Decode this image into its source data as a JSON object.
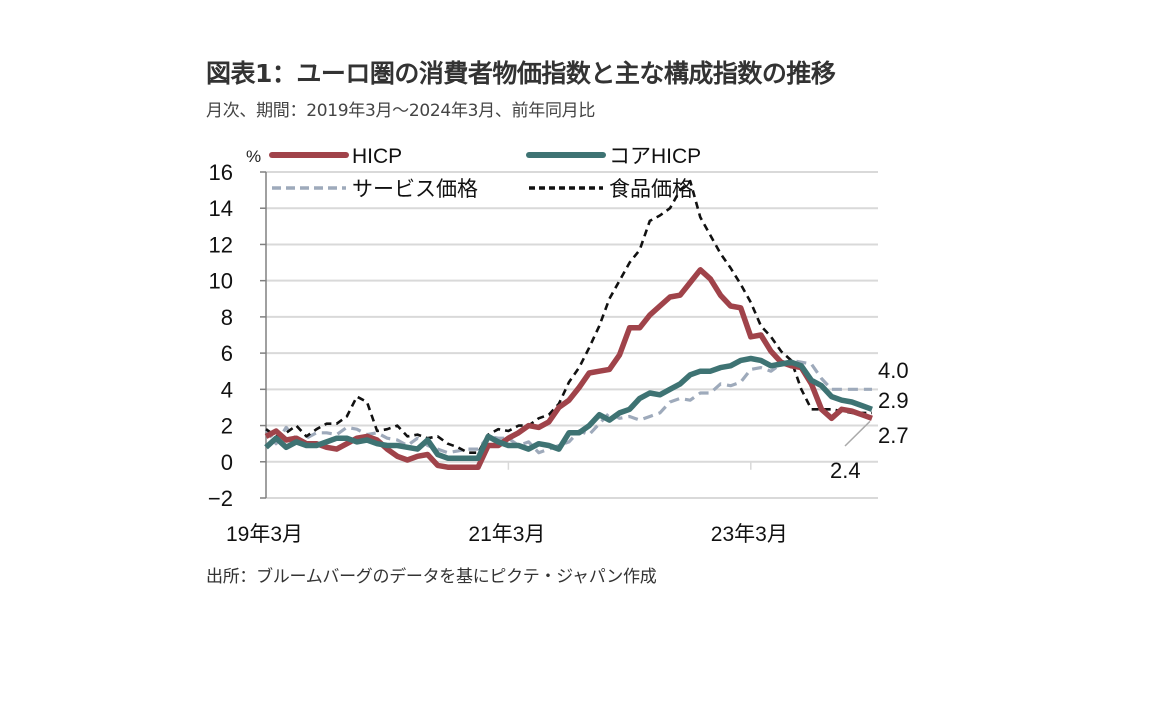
{
  "header": {
    "title": "図表1：ユーロ圏の消費者物価指数と主な構成指数の推移",
    "subtitle": "月次、期間：2019年3月～2024年3月、前年同月比"
  },
  "footer": {
    "source": "出所：ブルームバーグのデータを基にピクテ・ジャパン作成"
  },
  "colors": {
    "hicp": "#a0434a",
    "core": "#3e7373",
    "services": "#9eaabb",
    "food": "#111111",
    "grid": "#d9d9d9",
    "axis": "#808080"
  },
  "chart_data": {
    "type": "line",
    "title": "図表1：ユーロ圏の消費者物価指数と主な構成指数の推移",
    "ylabel": "%",
    "xlabel": "",
    "ylim": [
      -2,
      16
    ],
    "yticks": [
      -2,
      0,
      2,
      4,
      6,
      8,
      10,
      12,
      14,
      16
    ],
    "ytick_labels": [
      "−2",
      "0",
      "2",
      "4",
      "6",
      "8",
      "10",
      "12",
      "14",
      "16"
    ],
    "grid": true,
    "legend_position": "top",
    "x_start": "2019-03",
    "x_end": "2024-03",
    "xtick_labels": [
      {
        "index": 0,
        "label": "19年3月"
      },
      {
        "index": 24,
        "label": "21年3月"
      },
      {
        "index": 48,
        "label": "23年3月"
      }
    ],
    "series": [
      {
        "key": "services",
        "name": "サービス価格",
        "style": "dashed",
        "values": [
          1.8,
          1.0,
          1.9,
          1.2,
          1.3,
          1.6,
          1.6,
          1.5,
          1.9,
          1.8,
          1.5,
          1.6,
          1.3,
          1.2,
          0.9,
          1.3,
          0.9,
          0.7,
          0.5,
          0.6,
          0.7,
          0.7,
          1.4,
          1.3,
          1.3,
          0.9,
          1.1,
          0.5,
          0.7,
          0.9,
          1.1,
          1.7,
          1.5,
          2.1,
          2.7,
          2.4,
          2.5,
          2.3,
          2.5,
          2.7,
          3.3,
          3.5,
          3.4,
          3.8,
          3.8,
          4.3,
          4.2,
          4.4,
          5.1,
          5.2,
          5.0,
          5.4,
          5.6,
          5.5,
          5.4,
          4.6,
          4.0,
          4.0,
          4.0,
          4.0,
          4.0
        ]
      },
      {
        "key": "food",
        "name": "食品価格",
        "style": "dotted",
        "values": [
          1.8,
          1.4,
          1.6,
          2.0,
          1.4,
          1.8,
          2.1,
          2.1,
          2.5,
          3.6,
          3.3,
          1.7,
          1.8,
          2.0,
          1.4,
          1.5,
          1.3,
          1.4,
          1.0,
          0.8,
          0.5,
          0.5,
          1.5,
          1.8,
          1.7,
          2.0,
          2.0,
          2.4,
          2.6,
          3.2,
          4.4,
          5.2,
          6.3,
          7.5,
          9.0,
          10.0,
          11.0,
          11.7,
          13.3,
          13.6,
          14.0,
          15.0,
          15.5,
          13.5,
          12.5,
          11.5,
          10.7,
          9.8,
          8.8,
          7.5,
          6.9,
          6.1,
          5.6,
          4.0,
          2.9,
          2.9,
          2.9,
          2.8,
          2.7,
          2.7,
          2.7
        ]
      },
      {
        "key": "core",
        "name": "コアHICP",
        "style": "solid",
        "values": [
          0.8,
          1.3,
          0.8,
          1.1,
          0.9,
          0.9,
          1.1,
          1.3,
          1.3,
          1.1,
          1.2,
          1.0,
          0.9,
          0.9,
          0.8,
          0.7,
          1.2,
          0.4,
          0.2,
          0.2,
          0.2,
          0.2,
          1.4,
          1.1,
          0.9,
          0.9,
          0.7,
          1.0,
          0.9,
          0.7,
          1.6,
          1.6,
          2.0,
          2.6,
          2.3,
          2.7,
          2.9,
          3.5,
          3.8,
          3.7,
          4.0,
          4.3,
          4.8,
          5.0,
          5.0,
          5.2,
          5.3,
          5.6,
          5.7,
          5.6,
          5.3,
          5.4,
          5.5,
          5.3,
          4.5,
          4.2,
          3.6,
          3.4,
          3.3,
          3.1,
          2.9
        ]
      },
      {
        "key": "hicp",
        "name": "HICP",
        "style": "solid",
        "values": [
          1.4,
          1.7,
          1.2,
          1.3,
          1.0,
          1.0,
          0.8,
          0.7,
          1.0,
          1.3,
          1.4,
          1.2,
          0.7,
          0.3,
          0.1,
          0.3,
          0.4,
          -0.2,
          -0.3,
          -0.3,
          -0.3,
          -0.3,
          0.9,
          0.9,
          1.3,
          1.6,
          2.0,
          1.9,
          2.2,
          3.0,
          3.4,
          4.1,
          4.9,
          5.0,
          5.1,
          5.9,
          7.4,
          7.4,
          8.1,
          8.6,
          9.1,
          9.2,
          9.9,
          10.6,
          10.1,
          9.2,
          8.6,
          8.5,
          6.9,
          7.0,
          6.1,
          5.5,
          5.3,
          5.2,
          4.3,
          2.9,
          2.4,
          2.9,
          2.8,
          2.6,
          2.4
        ]
      }
    ],
    "annotations": [
      {
        "label": "4.0",
        "series": "services"
      },
      {
        "label": "2.9",
        "series": "core"
      },
      {
        "label": "2.7",
        "series": "food"
      },
      {
        "label": "2.4",
        "series": "hicp"
      }
    ]
  }
}
